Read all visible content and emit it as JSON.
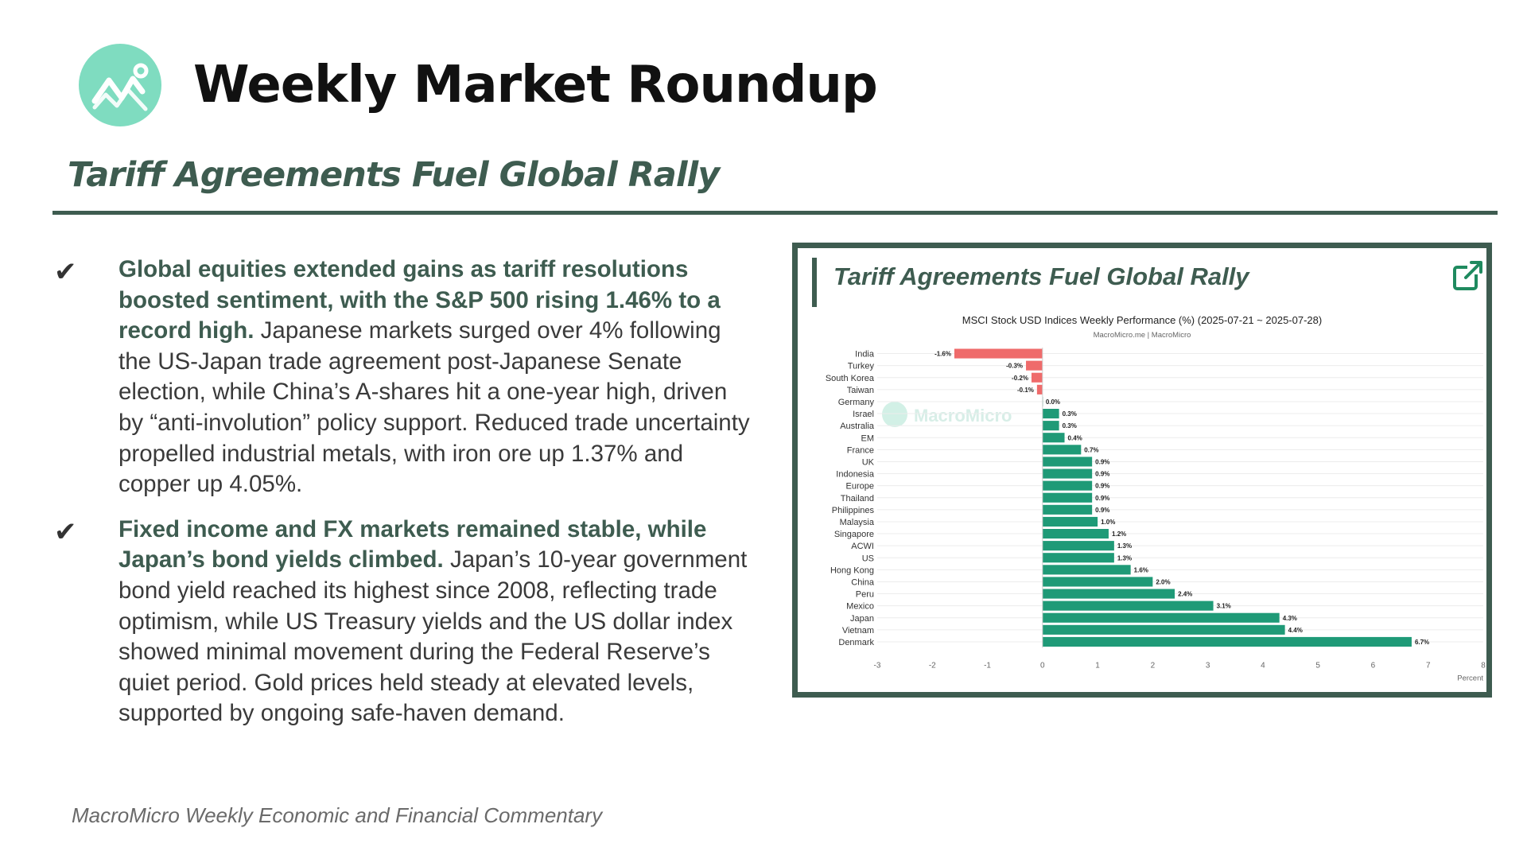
{
  "header": {
    "title": "Weekly Market Roundup",
    "subtitle": "Tariff Agreements Fuel Global Rally",
    "logo_icon": "chart-trend-icon",
    "accent_color": "#3e5c50",
    "logo_color": "#7fdcc0"
  },
  "bullets": [
    {
      "icon": "checkmark-icon",
      "bold": "Global equities extended gains as tariff resolutions boosted sentiment, with the S&P 500 rising 1.46% to a record high.",
      "text": " Japanese markets surged over 4% following the US-Japan trade agreement post-Japanese Senate election, while China’s A-shares hit a one-year high, driven by “anti-involution” policy support. Reduced trade uncertainty propelled industrial metals, with iron ore up 1.37% and copper up 4.05%."
    },
    {
      "icon": "checkmark-icon",
      "bold": "Fixed income and FX markets remained stable, while Japan’s bond yields climbed.",
      "text": " Japan’s 10-year government bond yield reached its highest since 2008, reflecting trade optimism, while US Treasury yields and the US dollar index showed minimal movement during the Federal Reserve’s quiet period. Gold prices held steady at elevated levels, supported by ongoing safe-haven demand."
    }
  ],
  "card": {
    "title": "Tariff Agreements Fuel Global Rally",
    "link_icon": "external-link-icon"
  },
  "footer": "MacroMicro Weekly Economic and Financial Commentary",
  "chart_data": {
    "type": "bar",
    "orientation": "horizontal",
    "title": "MSCI Stock USD Indices Weekly Performance (%) (2025-07-21 ~ 2025-07-28)",
    "subtitle": "MacroMicro.me | MacroMicro",
    "watermark": "MacroMicro",
    "xlabel": "Percent",
    "xlim": [
      -3,
      8
    ],
    "xticks": [
      -3,
      -2,
      -1,
      0,
      1,
      2,
      3,
      4,
      5,
      6,
      7,
      8
    ],
    "categories": [
      "India",
      "Turkey",
      "South Korea",
      "Taiwan",
      "Germany",
      "Israel",
      "Australia",
      "EM",
      "France",
      "UK",
      "Indonesia",
      "Europe",
      "Thailand",
      "Philippines",
      "Malaysia",
      "Singapore",
      "ACWI",
      "US",
      "Hong Kong",
      "China",
      "Peru",
      "Mexico",
      "Japan",
      "Vietnam",
      "Denmark"
    ],
    "values": [
      -1.6,
      -0.3,
      -0.2,
      -0.1,
      0.0,
      0.3,
      0.3,
      0.4,
      0.7,
      0.9,
      0.9,
      0.9,
      0.9,
      0.9,
      1.0,
      1.2,
      1.3,
      1.3,
      1.6,
      2.0,
      2.4,
      3.1,
      4.3,
      4.4,
      6.7
    ],
    "labels": [
      "-1.6%",
      "-0.3%",
      "-0.2%",
      "-0.1%",
      "0.0%",
      "0.3%",
      "0.3%",
      "0.4%",
      "0.7%",
      "0.9%",
      "0.9%",
      "0.9%",
      "0.9%",
      "0.9%",
      "1.0%",
      "1.2%",
      "1.3%",
      "1.3%",
      "1.6%",
      "2.0%",
      "2.4%",
      "3.1%",
      "4.3%",
      "4.4%",
      "6.7%"
    ],
    "positive_color": "#1f9a77",
    "negative_color": "#ef6b6b",
    "grid": true
  }
}
